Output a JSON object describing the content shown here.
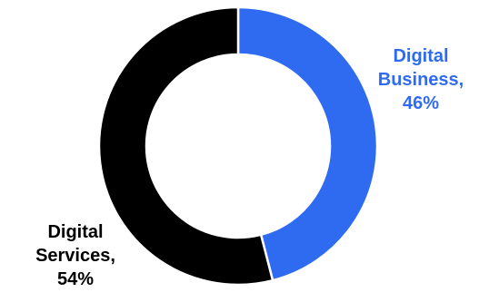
{
  "chart_data": {
    "type": "pie",
    "variant": "donut",
    "title": "",
    "start_angle_deg": 0,
    "direction": "clockwise",
    "slices": [
      {
        "category": "Digital Business",
        "value": 46,
        "label_lines": [
          "Digital",
          "Business,",
          "46%"
        ],
        "color": "#2f6bf0",
        "label_color": "#2f6bf0"
      },
      {
        "category": "Digital Services",
        "value": 54,
        "label_lines": [
          "Digital",
          "Services,",
          "54%"
        ],
        "color": "#000000",
        "label_color": "#000000"
      }
    ],
    "legend": "none"
  }
}
